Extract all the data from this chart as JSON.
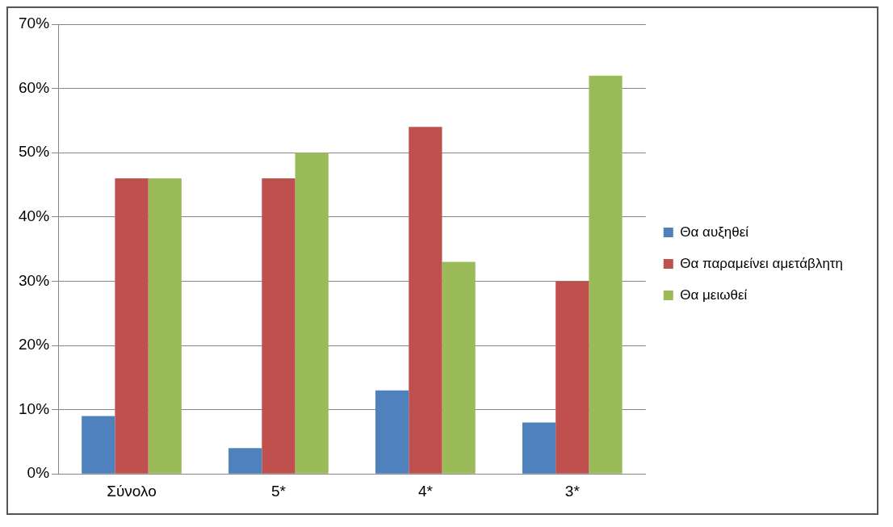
{
  "chart_data": {
    "type": "bar",
    "categories": [
      "Σύνολο",
      "5*",
      "4*",
      "3*"
    ],
    "series": [
      {
        "name": "Θα αυξηθεί",
        "color": "#4f81bd",
        "values": [
          9,
          4,
          13,
          8
        ]
      },
      {
        "name": "Θα παραμείνει αμετάβλητη",
        "color": "#c0504d",
        "values": [
          46,
          46,
          54,
          30
        ]
      },
      {
        "name": "Θα μειωθεί",
        "color": "#9bbb59",
        "values": [
          46,
          50,
          33,
          62
        ]
      }
    ],
    "ylim": [
      0,
      70
    ],
    "yticks": [
      {
        "value": 0,
        "label": "0%"
      },
      {
        "value": 10,
        "label": "10%"
      },
      {
        "value": 20,
        "label": "20%"
      },
      {
        "value": 30,
        "label": "30%"
      },
      {
        "value": 40,
        "label": "40%"
      },
      {
        "value": 50,
        "label": "50%"
      },
      {
        "value": 60,
        "label": "60%"
      },
      {
        "value": 70,
        "label": "70%"
      }
    ],
    "grid": "y",
    "legend": "right"
  }
}
